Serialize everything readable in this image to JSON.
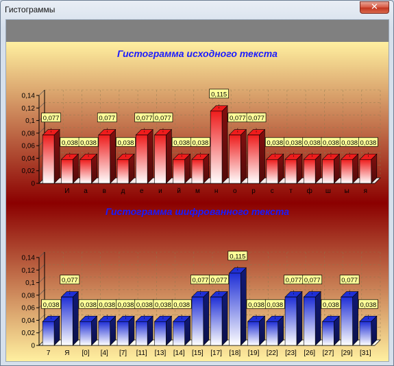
{
  "window": {
    "title": "Гистограммы",
    "close_glyph": "✕"
  },
  "colors": {
    "top_gradient_light": "#fff0a0",
    "top_gradient_dark": "#8b0000",
    "red_bar_top": "#ee1c1c",
    "red_bar_bottom": "#ffffff",
    "blue_bar_top": "#1f2fd6",
    "blue_bar_bottom": "#ffffff",
    "title_blue": "#1a1aff",
    "label_box": "#ffff99"
  },
  "chart_data": [
    {
      "type": "bar",
      "title": "Гистограмма исходного текста",
      "categories": [
        " ",
        "И",
        "а",
        "в",
        "д",
        "е",
        "и",
        "й",
        "м",
        "н",
        "о",
        "р",
        "с",
        "т",
        "ф",
        "ш",
        "ы",
        "я"
      ],
      "series": [
        {
          "values": [
            0.077,
            0.038,
            0.038,
            0.077,
            0.038,
            0.077,
            0.077,
            0.038,
            0.038,
            0.115,
            0.077,
            0.077,
            0.038,
            0.038,
            0.038,
            0.038,
            0.038,
            0.038
          ]
        }
      ],
      "value_labels": [
        "0,077",
        "0,038",
        "0,038",
        "0,077",
        "0,038",
        "0,077",
        "0,077",
        "0,038",
        "0,038",
        "0,115",
        "0,077",
        "0,077",
        "0,038",
        "0,038",
        "0,038",
        "0,038",
        "0,038",
        "0,038"
      ],
      "yticks": [
        "0",
        "0,02",
        "0,04",
        "0,06",
        "0,08",
        "0,1",
        "0,12",
        "0,14"
      ],
      "ylim": [
        0,
        0.14
      ],
      "grid": true,
      "bar_color": "red"
    },
    {
      "type": "bar",
      "title": "Гистограмма шифрованного текста",
      "categories": [
        "7",
        "Я",
        "[0]",
        "[4]",
        "[7]",
        "[11]",
        "[13]",
        "[14]",
        "[15]",
        "[17]",
        "[18]",
        "[19]",
        "[22]",
        "[23]",
        "[26]",
        "[27]",
        "[29]",
        "[31]"
      ],
      "series": [
        {
          "values": [
            0.038,
            0.077,
            0.038,
            0.038,
            0.038,
            0.038,
            0.038,
            0.038,
            0.077,
            0.077,
            0.115,
            0.038,
            0.038,
            0.077,
            0.077,
            0.038,
            0.077,
            0.038
          ]
        }
      ],
      "value_labels": [
        "0,038",
        "0,077",
        "0,038",
        "0,038",
        "0,038",
        "0,038",
        "0,038",
        "0,038",
        "0,077",
        "0,077",
        "0,115",
        "0,038",
        "0,038",
        "0,077",
        "0,077",
        "0,038",
        "0,077",
        "0,038"
      ],
      "yticks": [
        "0",
        "0,02",
        "0,04",
        "0,06",
        "0,08",
        "0,1",
        "0,12",
        "0,14"
      ],
      "ylim": [
        0,
        0.14
      ],
      "grid": true,
      "bar_color": "blue"
    }
  ]
}
